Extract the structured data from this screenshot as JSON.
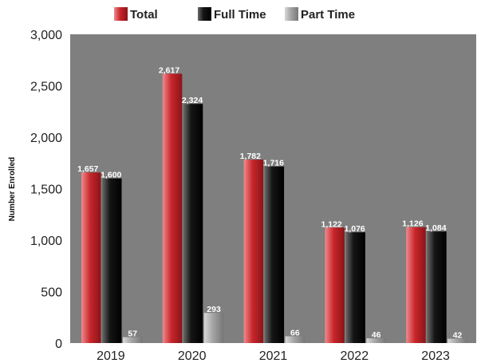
{
  "chart_data": {
    "type": "bar",
    "title": "",
    "xlabel": "",
    "ylabel": "Number Enrolled",
    "categories": [
      "2019",
      "2020",
      "2021",
      "2022",
      "2023"
    ],
    "series": [
      {
        "name": "Total",
        "values": [
          1657,
          2617,
          1782,
          1122,
          1126
        ],
        "color": "#c8262b",
        "labels": [
          "1,657",
          "2,617",
          "1,782",
          "1,122",
          "1,126"
        ]
      },
      {
        "name": "Full Time",
        "values": [
          1600,
          2324,
          1716,
          1076,
          1084
        ],
        "color": "#111111",
        "labels": [
          "1,600",
          "2,324",
          "1,716",
          "1,076",
          "1,084"
        ]
      },
      {
        "name": "Part Time",
        "values": [
          57,
          293,
          66,
          46,
          42
        ],
        "color": "#9a9a9a",
        "labels": [
          "57",
          "293",
          "66",
          "46",
          "42"
        ]
      }
    ],
    "ylim": [
      0,
      3000
    ],
    "yticks": [
      0,
      500,
      1000,
      1500,
      2000,
      2500,
      3000
    ],
    "ytick_labels": [
      "0",
      "500",
      "1,000",
      "1,500",
      "2,000",
      "2,500",
      "3,000"
    ],
    "grid": false,
    "legend_position": "top",
    "plot_background": "#7f7f7f"
  }
}
